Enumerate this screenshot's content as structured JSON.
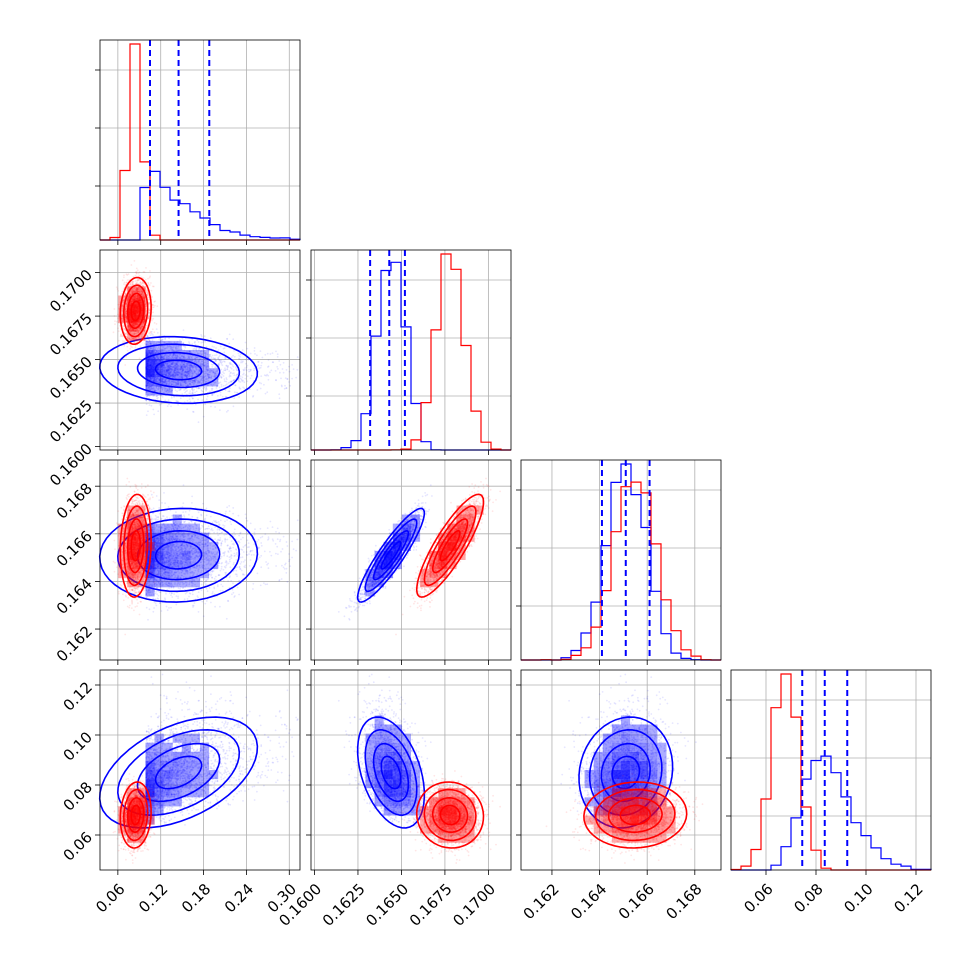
{
  "chart_data": {
    "type": "corner",
    "title": "",
    "grid": true,
    "legend": "none",
    "parameters": [
      {
        "range": [
          0.035,
          0.315
        ],
        "ticks": [
          0.06,
          0.12,
          0.18,
          0.24,
          0.3
        ],
        "tick_labels": [
          "0.06",
          "0.12",
          "0.18",
          "0.24",
          "0.30"
        ]
      },
      {
        "range": [
          0.1598,
          0.1713
        ],
        "ticks": [
          0.16,
          0.1625,
          0.165,
          0.1675,
          0.17
        ],
        "tick_labels": [
          "0.1600",
          "0.1625",
          "0.1650",
          "0.1675",
          "0.1700"
        ]
      },
      {
        "range": [
          0.1607,
          0.1691
        ],
        "ticks": [
          0.162,
          0.164,
          0.166,
          0.168
        ],
        "tick_labels": [
          "0.162",
          "0.164",
          "0.166",
          "0.168"
        ]
      },
      {
        "range": [
          0.046,
          0.126
        ],
        "ticks": [
          0.06,
          0.08,
          0.1,
          0.12
        ],
        "tick_labels": [
          "0.06",
          "0.08",
          "0.10",
          "0.12"
        ]
      }
    ],
    "series": [
      {
        "color": "#0000ff",
        "mean": [
          0.145,
          0.1644,
          0.1651,
          0.085
        ],
        "std": [
          0.04,
          0.0008,
          0.00082,
          0.0088
        ],
        "skew": [
          0.6,
          0,
          0,
          0.2
        ],
        "corr": [
          [
            1,
            -0.1,
            0.05,
            0.45
          ],
          [
            -0.1,
            1,
            0.9,
            -0.4
          ],
          [
            0.05,
            0.9,
            1,
            0.1
          ],
          [
            0.45,
            -0.4,
            0.1,
            1
          ]
        ],
        "quantiles": [
          [
            0.105,
            0.145,
            0.188
          ],
          [
            0.1632,
            0.1643,
            0.1652
          ],
          [
            0.1641,
            0.1651,
            0.1661
          ],
          [
            0.0745,
            0.0835,
            0.0925
          ]
        ]
      },
      {
        "color": "#ff0000",
        "mean": [
          0.085,
          0.1678,
          0.1655,
          0.068
        ],
        "std": [
          0.009,
          0.0008,
          0.0009,
          0.0055
        ],
        "skew": [
          0,
          0,
          0,
          0
        ],
        "corr": [
          [
            1,
            0.1,
            0.1,
            0.1
          ],
          [
            0.1,
            1,
            0.85,
            -0.05
          ],
          [
            0.1,
            0.85,
            1,
            0.05
          ],
          [
            0.1,
            -0.05,
            0.05,
            1
          ]
        ],
        "quantiles": null
      }
    ]
  }
}
